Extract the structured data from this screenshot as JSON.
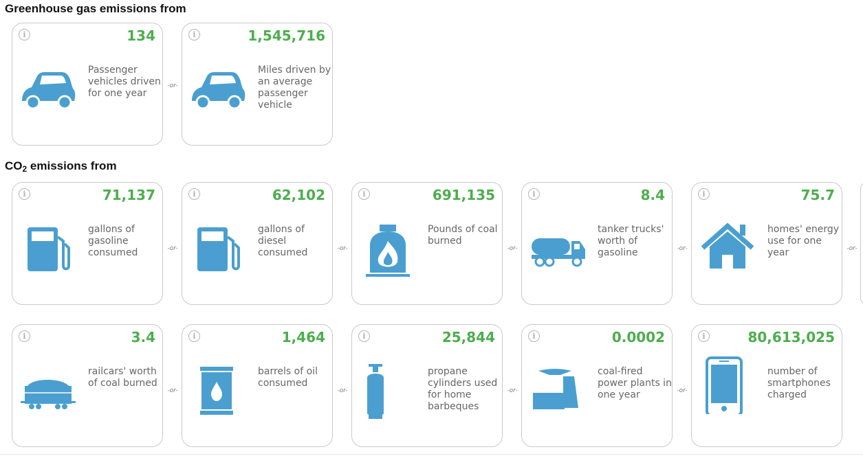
{
  "sections": {
    "ghg_title": "Greenhouse gas emissions from",
    "co2_title_prefix": "CO",
    "co2_title_sub": "2",
    "co2_title_suffix": " emissions from"
  },
  "or_label": "-or-",
  "info_label": "i",
  "colors": {
    "value_green": "#4cae4c",
    "icon_blue": "#4a9fd0",
    "label_gray": "#666666"
  },
  "ghg_cards": [
    {
      "value": "134",
      "icon": "car-icon",
      "label": "Passenger vehicles driven for one year"
    },
    {
      "value": "1,545,716",
      "icon": "car-icon",
      "label": "Miles driven by an average passenger vehicle"
    }
  ],
  "co2_cards_row1": [
    {
      "value": "71,137",
      "icon": "gas-pump-icon",
      "label": "gallons of gasoline consumed"
    },
    {
      "value": "62,102",
      "icon": "gas-pump-icon",
      "label": "gallons of diesel consumed"
    },
    {
      "value": "691,135",
      "icon": "coal-fire-icon",
      "label": "Pounds of coal burned"
    },
    {
      "value": "8.4",
      "icon": "tanker-truck-icon",
      "label": "tanker trucks' worth of gasoline"
    },
    {
      "value": "75.7",
      "icon": "home-icon",
      "label": "homes' energy use for one year"
    }
  ],
  "co2_cards_row2": [
    {
      "value": "3.4",
      "icon": "railcar-icon",
      "label": "railcars' worth of coal burned"
    },
    {
      "value": "1,464",
      "icon": "oil-barrel-icon",
      "label": "barrels of oil consumed"
    },
    {
      "value": "25,844",
      "icon": "propane-cylinder-icon",
      "label": "propane cylinders used for home barbeques"
    },
    {
      "value": "0.0002",
      "icon": "power-plant-icon",
      "label": "coal-fired power plants in one year"
    },
    {
      "value": "80,613,025",
      "icon": "smartphone-icon",
      "label": "number of smartphones charged"
    }
  ]
}
